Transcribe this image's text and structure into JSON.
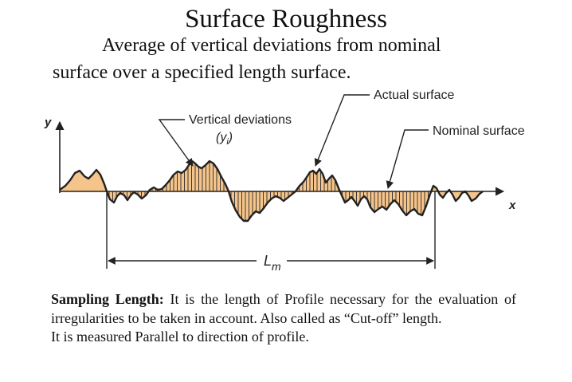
{
  "heading": {
    "title": "Surface Roughness",
    "subtitle_line1": "Average of vertical deviations from nominal",
    "subtitle_line2": "surface over a specified length surface."
  },
  "diagram": {
    "labels": {
      "y_axis": "y",
      "x_axis": "x",
      "vertical_deviations": "Vertical deviations",
      "yi_base": "y",
      "yi_sub": "i",
      "actual_surface": "Actual surface",
      "nominal_surface": "Nominal surface",
      "lm_base": "L",
      "lm_sub": "m"
    },
    "colors": {
      "fill": "#f5c48a",
      "line": "#222222"
    }
  },
  "description": {
    "bold_lead": "Sampling Length:",
    "body": " It is the length of Profile necessary for the evaluation of irregularities to be taken in account. Also called as “Cut-off” length.",
    "second_line": "It is measured Parallel to direction of profile."
  }
}
